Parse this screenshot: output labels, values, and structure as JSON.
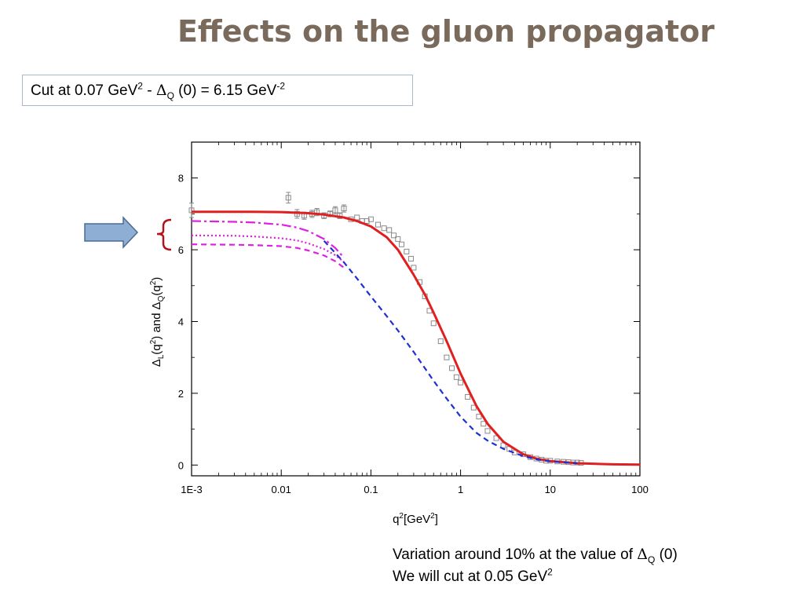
{
  "slide": {
    "title": "Effects on the gluon propagator",
    "cut_box": {
      "prefix": "Cut at  0.07 GeV",
      "sup1": "2",
      "mid": "  - ",
      "delta": "Δ",
      "sub": "Q",
      "suffix": " (0) = 6.15 GeV",
      "sup2": "-2"
    },
    "note": {
      "line1_prefix": "Variation around 10%  at  the value of ",
      "line1_delta": "Δ",
      "line1_sub": "Q",
      "line1_suffix": " (0)",
      "line2_prefix": "We will cut at 0.05 GeV",
      "line2_sup": "2"
    }
  },
  "arrow_icon": "right-arrow-icon",
  "brace_icon": "left-curly-brace-icon",
  "chart_data": {
    "type": "line",
    "xscale": "log",
    "xlim": [
      0.001,
      100
    ],
    "ylim": [
      -0.3,
      9
    ],
    "x_ticks": [
      {
        "v": 0.001,
        "label": "1E-3"
      },
      {
        "v": 0.01,
        "label": "0.01"
      },
      {
        "v": 0.1,
        "label": "0.1"
      },
      {
        "v": 1,
        "label": "1"
      },
      {
        "v": 10,
        "label": "10"
      },
      {
        "v": 100,
        "label": "100"
      }
    ],
    "y_ticks": [
      {
        "v": 0,
        "label": "0"
      },
      {
        "v": 2,
        "label": "2"
      },
      {
        "v": 4,
        "label": "4"
      },
      {
        "v": 6,
        "label": "6"
      },
      {
        "v": 8,
        "label": "8"
      }
    ],
    "xlabel": {
      "main": "q",
      "sup": "2",
      "rest": "[GeV",
      "sup2": "2",
      "end": "]"
    },
    "ylabel": {
      "d1": "Δ",
      "s1": "L",
      "p1": "(q",
      "sup1": "2",
      "p2": ") and ",
      "d2": "Δ",
      "s2": "Q",
      "p3": "(q",
      "sup2": "2",
      "p4": ")"
    },
    "series": [
      {
        "style": "solid",
        "color": "#e02020",
        "x": [
          0.001,
          0.005,
          0.01,
          0.02,
          0.03,
          0.05,
          0.07,
          0.1,
          0.15,
          0.2,
          0.3,
          0.4,
          0.5,
          0.7,
          1,
          1.5,
          2,
          3,
          5,
          7,
          10,
          20,
          50,
          100
        ],
        "y": [
          7.06,
          7.06,
          7.05,
          7.02,
          6.98,
          6.9,
          6.8,
          6.65,
          6.35,
          6.0,
          5.3,
          4.75,
          4.25,
          3.45,
          2.55,
          1.65,
          1.15,
          0.65,
          0.3,
          0.18,
          0.11,
          0.05,
          0.02,
          0.01
        ]
      },
      {
        "style": "dashdot",
        "color": "#e020e0",
        "x": [
          0.001,
          0.003,
          0.005,
          0.01,
          0.015,
          0.02,
          0.03,
          0.04,
          0.05
        ],
        "y": [
          6.8,
          6.78,
          6.76,
          6.7,
          6.62,
          6.52,
          6.3,
          6.05,
          5.78
        ]
      },
      {
        "style": "dotted",
        "color": "#e020e0",
        "x": [
          0.001,
          0.003,
          0.005,
          0.01,
          0.015,
          0.02,
          0.03,
          0.04,
          0.05
        ],
        "y": [
          6.4,
          6.39,
          6.37,
          6.32,
          6.26,
          6.18,
          6.02,
          5.85,
          5.66
        ]
      },
      {
        "style": "dashed",
        "color": "#e020e0",
        "x": [
          0.001,
          0.003,
          0.005,
          0.01,
          0.015,
          0.02,
          0.03,
          0.04,
          0.05
        ],
        "y": [
          6.15,
          6.14,
          6.13,
          6.1,
          6.05,
          5.98,
          5.84,
          5.68,
          5.5
        ]
      },
      {
        "style": "dashed",
        "color": "#2030d0",
        "x": [
          0.03,
          0.05,
          0.07,
          0.1,
          0.15,
          0.2,
          0.3,
          0.5,
          0.7,
          1,
          1.5,
          2,
          3,
          5,
          7,
          10,
          20
        ],
        "y": [
          6.25,
          5.65,
          5.2,
          4.7,
          4.15,
          3.75,
          3.15,
          2.35,
          1.85,
          1.35,
          0.9,
          0.68,
          0.45,
          0.25,
          0.16,
          0.1,
          0.05
        ]
      }
    ],
    "markers": {
      "color": "#8a8a8a",
      "x": [
        0.001,
        0.012,
        0.015,
        0.018,
        0.022,
        0.025,
        0.03,
        0.035,
        0.04,
        0.045,
        0.05,
        0.06,
        0.07,
        0.08,
        0.09,
        0.1,
        0.12,
        0.14,
        0.16,
        0.18,
        0.2,
        0.22,
        0.25,
        0.28,
        0.3,
        0.35,
        0.4,
        0.45,
        0.5,
        0.6,
        0.7,
        0.8,
        0.9,
        1,
        1.2,
        1.4,
        1.6,
        1.8,
        2,
        2.5,
        3,
        3.5,
        4,
        5,
        6,
        7,
        8,
        9,
        10,
        12,
        14,
        16,
        18,
        20,
        22
      ],
      "y": [
        7.1,
        7.45,
        7.0,
        6.95,
        7.0,
        7.05,
        6.95,
        7.0,
        7.1,
        6.95,
        7.15,
        6.85,
        6.9,
        6.8,
        6.8,
        6.85,
        6.7,
        6.6,
        6.55,
        6.4,
        6.3,
        6.15,
        5.95,
        5.75,
        5.5,
        5.1,
        4.7,
        4.3,
        3.95,
        3.45,
        3.0,
        2.7,
        2.45,
        2.3,
        1.9,
        1.6,
        1.35,
        1.15,
        0.95,
        0.75,
        0.55,
        0.45,
        0.35,
        0.3,
        0.22,
        0.18,
        0.15,
        0.12,
        0.12,
        0.1,
        0.09,
        0.08,
        0.07,
        0.07,
        0.06
      ],
      "err": [
        0.2,
        0.15,
        0.12,
        0.1,
        0.1,
        0.1,
        0.08,
        0.08,
        0.1,
        0.08,
        0.1,
        0.06,
        0.06,
        0.06,
        0.05,
        0.05,
        0.05,
        0.05,
        0.05,
        0.05,
        0.05,
        0.05,
        0.05,
        0.05,
        0.05,
        0.05,
        0.05,
        0.05,
        0.05,
        0.05,
        0.05,
        0.05,
        0.05,
        0.05,
        0.05,
        0.05,
        0.05,
        0.05,
        0.05,
        0.05,
        0.05,
        0.05,
        0.05,
        0.05,
        0.05,
        0.05,
        0.05,
        0.05,
        0.05,
        0.05,
        0.05,
        0.05,
        0.05,
        0.05,
        0.05
      ]
    }
  }
}
